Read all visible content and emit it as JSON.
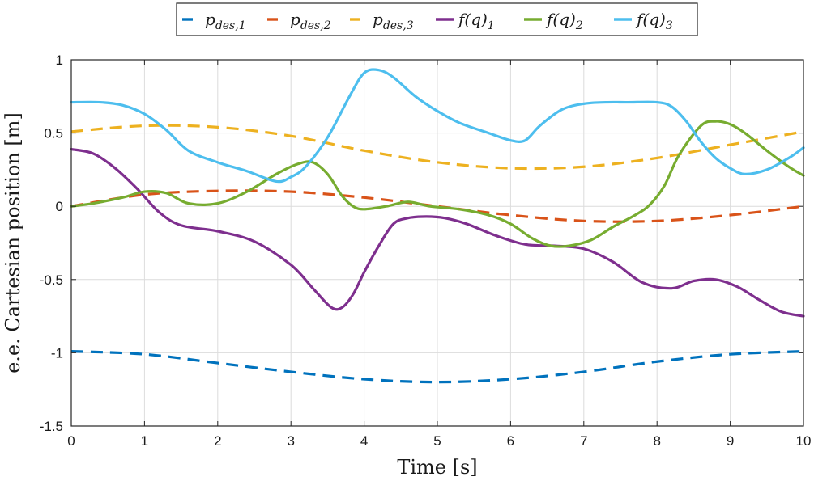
{
  "chart_data": {
    "type": "line",
    "title": "",
    "xlabel": "Time [s]",
    "ylabel": "e.e. Cartesian position [m]",
    "xlim": [
      0,
      10
    ],
    "ylim": [
      -1.5,
      1
    ],
    "xticks": [
      0,
      1,
      2,
      3,
      4,
      5,
      6,
      7,
      8,
      9,
      10
    ],
    "yticks": [
      -1.5,
      -1,
      -0.5,
      0,
      0.5,
      1
    ],
    "xtick_labels": [
      "0",
      "1",
      "2",
      "3",
      "4",
      "5",
      "6",
      "7",
      "8",
      "9",
      "10"
    ],
    "ytick_labels": [
      "-1.5",
      "-1",
      "-0.5",
      "0",
      "0.5",
      "1"
    ],
    "grid": true,
    "legend_position": "top-center",
    "series": [
      {
        "name": "p_des,1",
        "label_main": "p",
        "label_sub": "des,1",
        "style": "dashed",
        "color": "#0072BD",
        "x": [
          0,
          1,
          2,
          3,
          4,
          5,
          6,
          7,
          8,
          9,
          10
        ],
        "y": [
          -0.99,
          -1.01,
          -1.07,
          -1.13,
          -1.18,
          -1.2,
          -1.18,
          -1.13,
          -1.06,
          -1.01,
          -0.99
        ]
      },
      {
        "name": "p_des,2",
        "label_main": "p",
        "label_sub": "des,2",
        "style": "dashed",
        "color": "#D95319",
        "x": [
          0,
          1,
          2,
          3,
          4,
          5,
          6,
          7,
          8,
          9,
          10
        ],
        "y": [
          0.0,
          0.08,
          0.105,
          0.1,
          0.06,
          0.0,
          -0.06,
          -0.1,
          -0.1,
          -0.06,
          0.0
        ]
      },
      {
        "name": "p_des,3",
        "label_main": "p",
        "label_sub": "des,3",
        "style": "dashed",
        "color": "#EDB120",
        "x": [
          0,
          1,
          2,
          3,
          4,
          5,
          6,
          7,
          8,
          9,
          10
        ],
        "y": [
          0.51,
          0.55,
          0.54,
          0.48,
          0.38,
          0.3,
          0.26,
          0.27,
          0.33,
          0.42,
          0.51
        ]
      },
      {
        "name": "f(q)_1",
        "label_main": "f(q)",
        "label_sub": "1",
        "style": "solid",
        "color": "#7E2F8E",
        "x": [
          0,
          0.3,
          0.6,
          0.9,
          1.2,
          1.5,
          2.0,
          2.5,
          3.0,
          3.3,
          3.55,
          3.7,
          3.85,
          4.0,
          4.2,
          4.4,
          4.6,
          4.85,
          5.1,
          5.4,
          5.8,
          6.2,
          6.6,
          7.0,
          7.4,
          7.8,
          8.2,
          8.5,
          8.8,
          9.1,
          9.4,
          9.7,
          10.0
        ],
        "y": [
          0.39,
          0.36,
          0.26,
          0.12,
          -0.04,
          -0.13,
          -0.17,
          -0.24,
          -0.4,
          -0.56,
          -0.69,
          -0.69,
          -0.6,
          -0.45,
          -0.27,
          -0.12,
          -0.08,
          -0.07,
          -0.08,
          -0.12,
          -0.2,
          -0.26,
          -0.27,
          -0.29,
          -0.38,
          -0.52,
          -0.56,
          -0.51,
          -0.5,
          -0.55,
          -0.64,
          -0.72,
          -0.75
        ]
      },
      {
        "name": "f(q)_2",
        "label_main": "f(q)",
        "label_sub": "2",
        "style": "solid",
        "color": "#77AC30",
        "x": [
          0,
          0.3,
          0.7,
          1.0,
          1.3,
          1.6,
          2.0,
          2.4,
          2.8,
          3.1,
          3.3,
          3.5,
          3.7,
          3.85,
          4.0,
          4.3,
          4.6,
          4.9,
          5.3,
          5.7,
          6.0,
          6.3,
          6.55,
          6.8,
          7.1,
          7.4,
          7.7,
          7.9,
          8.1,
          8.3,
          8.6,
          8.8,
          9.0,
          9.2,
          9.5,
          9.8,
          10.0
        ],
        "y": [
          0.0,
          0.02,
          0.06,
          0.1,
          0.09,
          0.02,
          0.02,
          0.1,
          0.22,
          0.29,
          0.3,
          0.22,
          0.07,
          0.0,
          -0.02,
          0.0,
          0.03,
          0.0,
          -0.02,
          -0.06,
          -0.12,
          -0.22,
          -0.27,
          -0.27,
          -0.23,
          -0.14,
          -0.06,
          0.01,
          0.14,
          0.35,
          0.55,
          0.58,
          0.56,
          0.5,
          0.38,
          0.27,
          0.21
        ]
      },
      {
        "name": "f(q)_3",
        "label_main": "f(q)",
        "label_sub": "3",
        "style": "solid",
        "color": "#4DBEEE",
        "x": [
          0,
          0.4,
          0.7,
          1.0,
          1.3,
          1.6,
          2.0,
          2.4,
          2.8,
          3.0,
          3.2,
          3.5,
          3.8,
          4.0,
          4.2,
          4.4,
          4.7,
          5.0,
          5.3,
          5.7,
          6.0,
          6.2,
          6.4,
          6.7,
          7.0,
          7.3,
          7.6,
          8.0,
          8.2,
          8.4,
          8.6,
          8.8,
          9.0,
          9.2,
          9.5,
          9.8,
          10.0
        ],
        "y": [
          0.71,
          0.71,
          0.69,
          0.63,
          0.52,
          0.38,
          0.3,
          0.24,
          0.17,
          0.2,
          0.27,
          0.47,
          0.75,
          0.91,
          0.93,
          0.88,
          0.75,
          0.65,
          0.57,
          0.5,
          0.45,
          0.45,
          0.55,
          0.66,
          0.7,
          0.71,
          0.71,
          0.71,
          0.68,
          0.58,
          0.44,
          0.33,
          0.26,
          0.22,
          0.25,
          0.33,
          0.4
        ]
      }
    ]
  }
}
